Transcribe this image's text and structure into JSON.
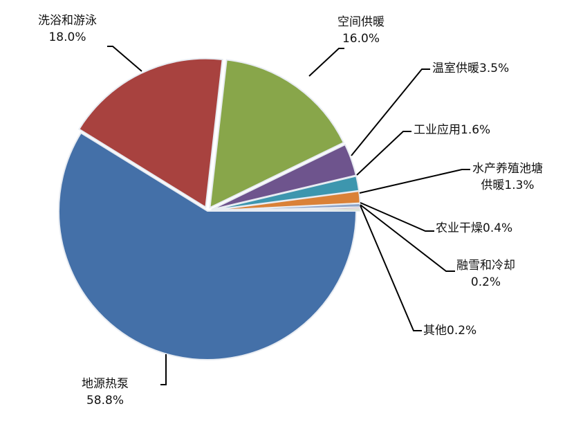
{
  "chart_data": {
    "type": "pie",
    "title": "",
    "slices": [
      {
        "label": "地源热泵",
        "value": 58.8,
        "text": "58.8%",
        "color": "#4470a8"
      },
      {
        "label": "洗浴和游泳",
        "value": 18.0,
        "text": "18.0%",
        "color": "#a8423f"
      },
      {
        "label": "空间供暖",
        "value": 16.0,
        "text": "16.0%",
        "color": "#88a64a"
      },
      {
        "label": "温室供暖",
        "value": 3.5,
        "text": "3.5%",
        "color": "#6e548d"
      },
      {
        "label": "工业应用",
        "value": 1.6,
        "text": "1.6%",
        "color": "#3d96ae"
      },
      {
        "label": "水产养殖池塘供暖",
        "value": 1.3,
        "text": "1.3%",
        "color": "#da8137"
      },
      {
        "label": "农业干燥",
        "value": 0.4,
        "text": "0.4%",
        "color": "#8ea4c8"
      },
      {
        "label": "融雪和冷却",
        "value": 0.2,
        "text": "0.2%",
        "color": "#c88e8c"
      },
      {
        "label": "其他",
        "value": 0.2,
        "text": "0.2%",
        "color": "#b3c88c"
      }
    ],
    "labels": {
      "s0": [
        "地源热泵",
        "58.8%"
      ],
      "s1": [
        "洗浴和游泳",
        "18.0%"
      ],
      "s2": [
        "空间供暖",
        "16.0%"
      ],
      "s3": "温室供暖3.5%",
      "s4": "工业应用1.6%",
      "s5": [
        "水产养殖池塘",
        "供暖1.3%"
      ],
      "s6": "农业干燥0.4%",
      "s7": [
        "融雪和冷却",
        "0.2%"
      ],
      "s8": "其他0.2%"
    }
  }
}
